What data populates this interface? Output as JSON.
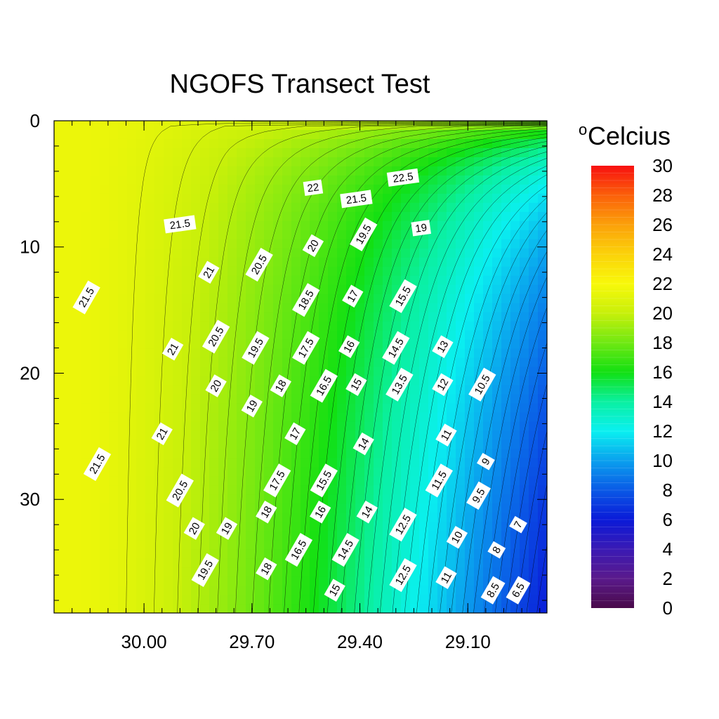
{
  "chart_data": {
    "type": "heatmap",
    "title": "NGOFS Transect Test",
    "xlabel": "",
    "ylabel": "",
    "x_ticks": [
      "30.00",
      "29.70",
      "29.40",
      "29.10"
    ],
    "x_tick_values": [
      30.0,
      29.7,
      29.4,
      29.1
    ],
    "xlim": [
      30.25,
      28.88
    ],
    "y_ticks": [
      "0",
      "10",
      "20",
      "30"
    ],
    "y_tick_values": [
      0,
      10,
      20,
      30
    ],
    "ylim": [
      0,
      39
    ],
    "y_reversed": true,
    "colorbar": {
      "title": "Celcius",
      "title_superscript": "o",
      "min": 0,
      "max": 30,
      "ticks": [
        "0",
        "2",
        "4",
        "6",
        "8",
        "10",
        "12",
        "14",
        "16",
        "18",
        "20",
        "22",
        "24",
        "26",
        "28",
        "30"
      ],
      "colors": [
        "#4a0a4a",
        "#5a1a8c",
        "#3a1ab4",
        "#0a1ad8",
        "#0a5ae6",
        "#0aa0ee",
        "#0af0f0",
        "#0af0a0",
        "#12e012",
        "#70e812",
        "#c8f00a",
        "#f8f80a",
        "#fbd20a",
        "#fba00a",
        "#fb600a",
        "#f81010"
      ]
    },
    "field": {
      "surface_max": 23.5,
      "near_shore_value": 21.5,
      "deep_offshore_min": 6
    },
    "contour_interval": 0.5,
    "contour_labels": [
      {
        "text": "22.5",
        "x": 29.28,
        "y": 4.5
      },
      {
        "text": "22",
        "x": 29.53,
        "y": 5.3
      },
      {
        "text": "21.5",
        "x": 29.41,
        "y": 6.2
      },
      {
        "text": "21.5",
        "x": 29.9,
        "y": 8.2
      },
      {
        "text": "19",
        "x": 29.23,
        "y": 8.5
      },
      {
        "text": "19.5",
        "x": 29.39,
        "y": 9.0
      },
      {
        "text": "20",
        "x": 29.53,
        "y": 9.9
      },
      {
        "text": "20.5",
        "x": 29.68,
        "y": 11.4
      },
      {
        "text": "21",
        "x": 29.82,
        "y": 12.0
      },
      {
        "text": "21.5",
        "x": 30.16,
        "y": 14.0
      },
      {
        "text": "18.5",
        "x": 29.55,
        "y": 14.2
      },
      {
        "text": "17",
        "x": 29.42,
        "y": 13.9
      },
      {
        "text": "15.5",
        "x": 29.28,
        "y": 13.9
      },
      {
        "text": "20.5",
        "x": 29.8,
        "y": 17.1
      },
      {
        "text": "21",
        "x": 29.92,
        "y": 18.1
      },
      {
        "text": "19.5",
        "x": 29.69,
        "y": 18.0
      },
      {
        "text": "17.5",
        "x": 29.55,
        "y": 18.0
      },
      {
        "text": "16",
        "x": 29.43,
        "y": 17.9
      },
      {
        "text": "14.5",
        "x": 29.3,
        "y": 18.0
      },
      {
        "text": "13",
        "x": 29.17,
        "y": 17.9
      },
      {
        "text": "20",
        "x": 29.8,
        "y": 21.0
      },
      {
        "text": "19",
        "x": 29.7,
        "y": 22.6
      },
      {
        "text": "18",
        "x": 29.62,
        "y": 21.0
      },
      {
        "text": "16.5",
        "x": 29.5,
        "y": 21.0
      },
      {
        "text": "15",
        "x": 29.41,
        "y": 20.9
      },
      {
        "text": "13.5",
        "x": 29.29,
        "y": 20.9
      },
      {
        "text": "12",
        "x": 29.17,
        "y": 20.9
      },
      {
        "text": "10.5",
        "x": 29.06,
        "y": 20.9
      },
      {
        "text": "21",
        "x": 29.95,
        "y": 24.8
      },
      {
        "text": "17",
        "x": 29.58,
        "y": 24.8
      },
      {
        "text": "14",
        "x": 29.39,
        "y": 25.6
      },
      {
        "text": "11",
        "x": 29.16,
        "y": 24.9
      },
      {
        "text": "21.5",
        "x": 30.13,
        "y": 27.2
      },
      {
        "text": "9",
        "x": 29.05,
        "y": 27.0
      },
      {
        "text": "17.5",
        "x": 29.63,
        "y": 28.5
      },
      {
        "text": "15.5",
        "x": 29.5,
        "y": 28.5
      },
      {
        "text": "11.5",
        "x": 29.18,
        "y": 28.5
      },
      {
        "text": "20.5",
        "x": 29.9,
        "y": 29.3
      },
      {
        "text": "9.5",
        "x": 29.07,
        "y": 29.7
      },
      {
        "text": "18",
        "x": 29.66,
        "y": 31.0
      },
      {
        "text": "16",
        "x": 29.51,
        "y": 31.0
      },
      {
        "text": "14",
        "x": 29.38,
        "y": 31.0
      },
      {
        "text": "12.5",
        "x": 29.28,
        "y": 32.0
      },
      {
        "text": "20",
        "x": 29.86,
        "y": 32.3
      },
      {
        "text": "19",
        "x": 29.77,
        "y": 32.3
      },
      {
        "text": "7",
        "x": 28.96,
        "y": 32.0
      },
      {
        "text": "10",
        "x": 29.13,
        "y": 33.0
      },
      {
        "text": "16.5",
        "x": 29.57,
        "y": 34.0
      },
      {
        "text": "14.5",
        "x": 29.44,
        "y": 34.0
      },
      {
        "text": "8",
        "x": 29.02,
        "y": 34.0
      },
      {
        "text": "19.5",
        "x": 29.83,
        "y": 35.6
      },
      {
        "text": "18",
        "x": 29.66,
        "y": 35.5
      },
      {
        "text": "12.5",
        "x": 29.28,
        "y": 36.0
      },
      {
        "text": "11",
        "x": 29.16,
        "y": 36.2
      },
      {
        "text": "15",
        "x": 29.47,
        "y": 37.2
      },
      {
        "text": "8.5",
        "x": 29.03,
        "y": 37.2
      },
      {
        "text": "6.5",
        "x": 28.96,
        "y": 37.2
      }
    ]
  }
}
